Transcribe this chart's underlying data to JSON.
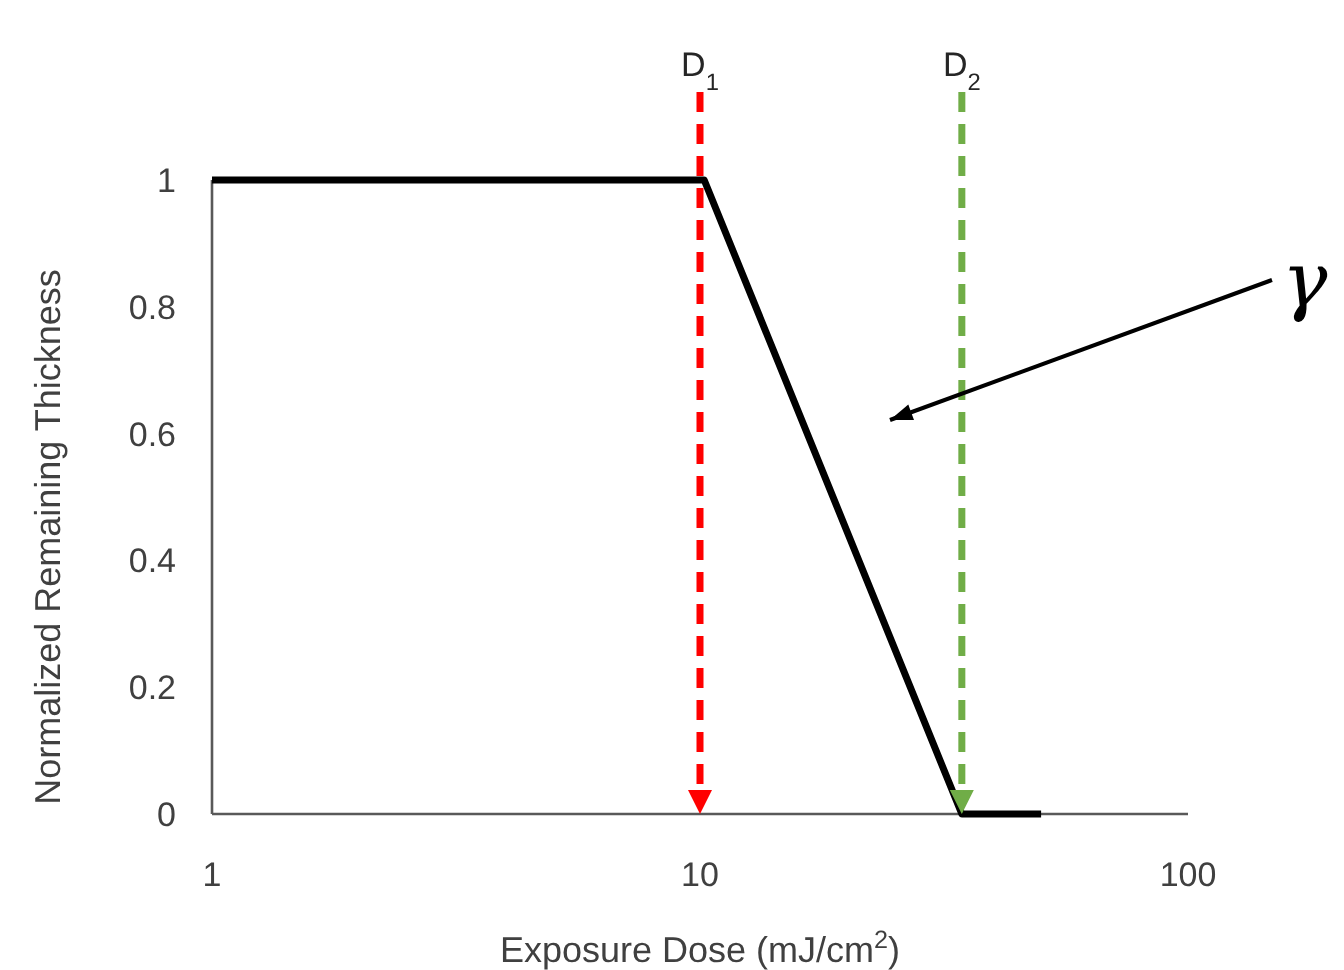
{
  "chart_data": {
    "type": "line",
    "xlabel": "Exposure Dose (mJ/cm$^{2}$)",
    "ylabel": "Normalized Remaining Thickness",
    "log": "x",
    "xlim": [
      1,
      100
    ],
    "xticks": [
      1,
      10,
      100
    ],
    "ylim": [
      0,
      1
    ],
    "yticks": [
      0,
      0.2,
      0.4,
      0.6,
      0.8,
      1
    ],
    "grid": false,
    "marker": "none",
    "line_style": "solid",
    "series": [
      {
        "color": "#000000",
        "x": [
          1,
          10.2,
          34.4,
          50
        ],
        "values": [
          1,
          1,
          0,
          0
        ]
      }
    ],
    "ref_lines": [
      {
        "axis": "x",
        "value": 10,
        "label": "D$_{1}$",
        "color": "#ff0000",
        "line_style": "dashed"
      },
      {
        "axis": "x",
        "value": 34.4,
        "label": "D$_{2}$",
        "color": "#70ad47",
        "line_style": "dashed"
      }
    ],
    "annotations": [
      "γ"
    ]
  }
}
